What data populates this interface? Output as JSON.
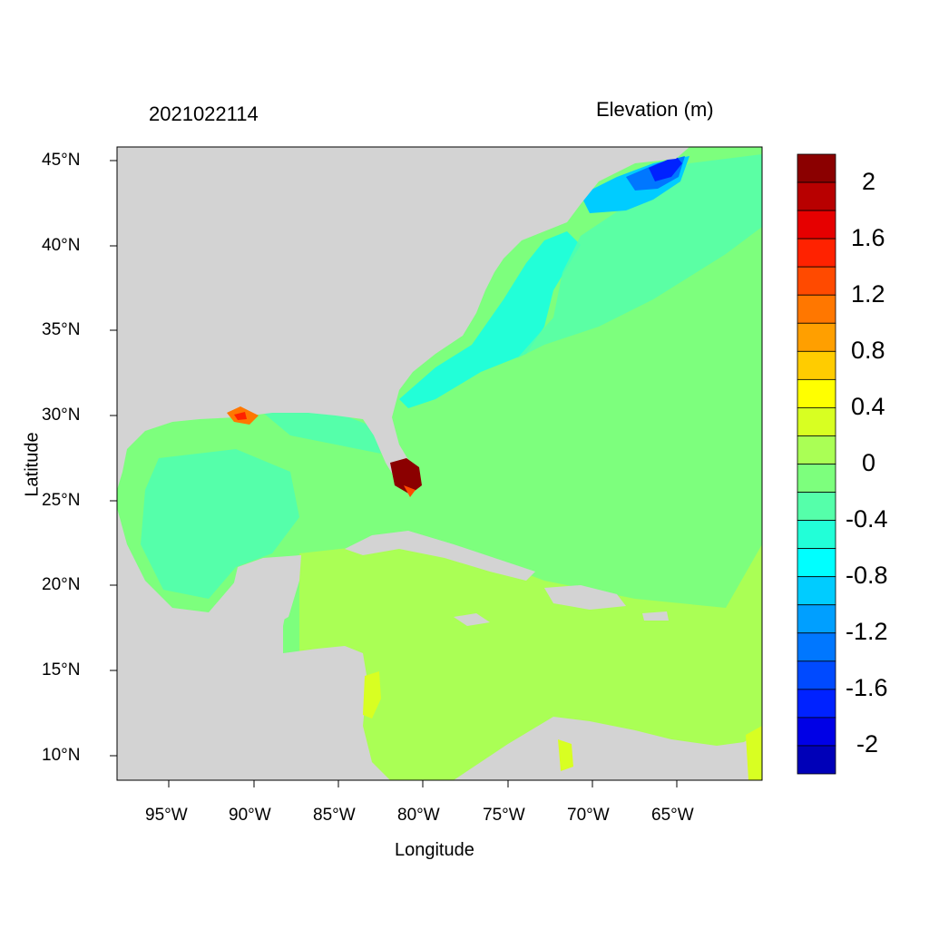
{
  "title_left": "2021022114",
  "title_right": "Elevation (m)",
  "x_axis_label": "Longitude",
  "y_axis_label": "Latitude",
  "lon_ticks": [
    "95°W",
    "90°W",
    "85°W",
    "80°W",
    "75°W",
    "70°W",
    "65°W"
  ],
  "lat_ticks": [
    "45°N",
    "40°N",
    "35°N",
    "30°N",
    "25°N",
    "20°N",
    "15°N",
    "10°N"
  ],
  "colorbar": {
    "labels": [
      "2",
      "1.6",
      "1.2",
      "0.8",
      "0.4",
      "0",
      "-0.4",
      "-0.8",
      "-1.2",
      "-1.6",
      "-2"
    ],
    "colors": [
      "#8b0000",
      "#b80000",
      "#e60000",
      "#ff2200",
      "#ff4a00",
      "#ff7700",
      "#ff9f00",
      "#ffcc00",
      "#ffff00",
      "#d8ff22",
      "#aaff55",
      "#7dff7d",
      "#55ffaa",
      "#22ffd8",
      "#00ffff",
      "#00ccff",
      "#009fff",
      "#0077ff",
      "#004aff",
      "#0022ff",
      "#0000e6",
      "#0000b8"
    ]
  },
  "colors": {
    "land": "#d3d3d3",
    "ocean_zero": "#7dff7d",
    "ocean_neg": "#55ffaa",
    "caribbean": "#aaff55"
  }
}
